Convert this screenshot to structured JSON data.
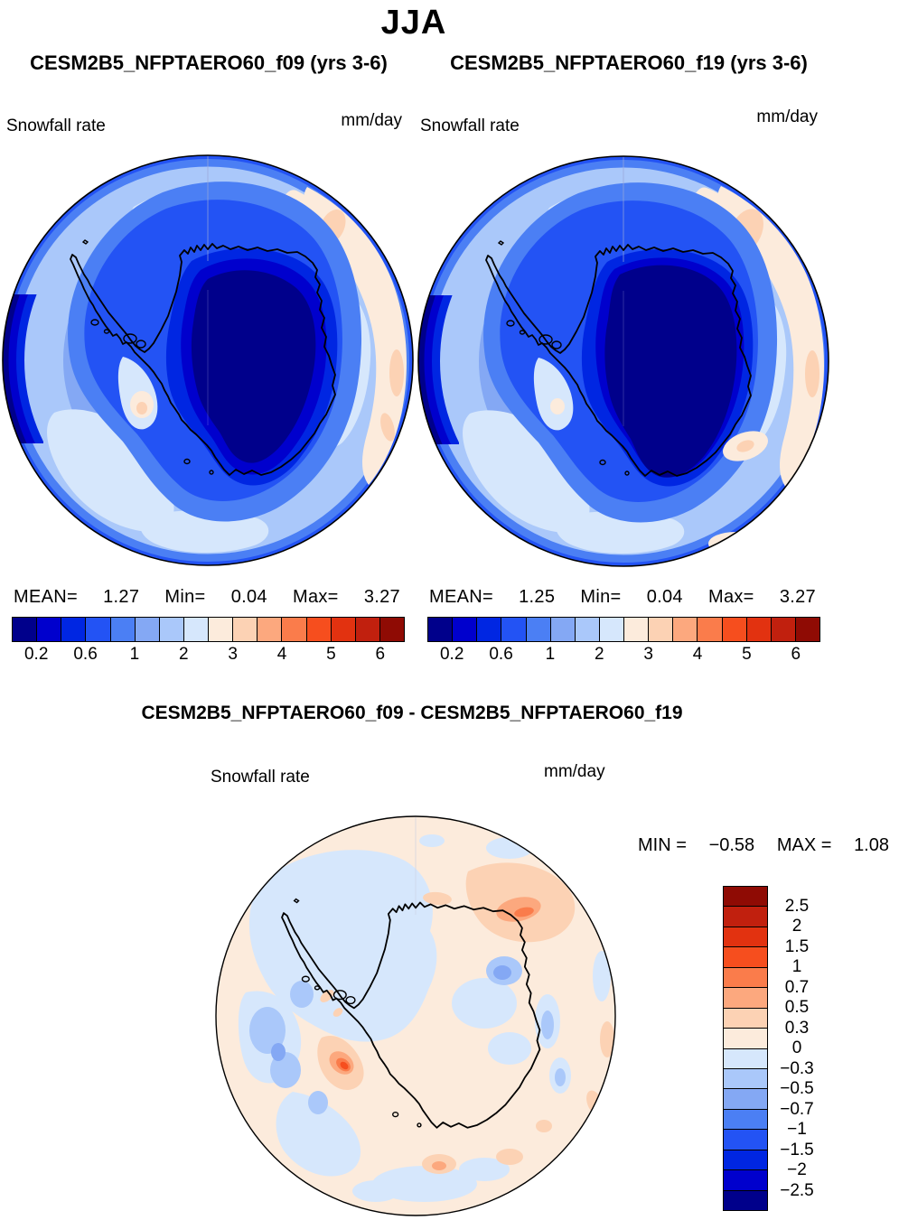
{
  "title": "JJA",
  "panels": [
    {
      "subtitle": "CESM2B5_NFPTAERO60_f09 (yrs 3-6)",
      "field": "Snowfall rate",
      "units": "mm/day",
      "stats": {
        "mean_label": "MEAN=",
        "mean": "1.27",
        "min_label": "Min=",
        "min": "0.04",
        "max_label": "Max=",
        "max": "3.27"
      }
    },
    {
      "subtitle": "CESM2B5_NFPTAERO60_f19 (yrs 3-6)",
      "field": "Snowfall rate",
      "units": "mm/day",
      "stats": {
        "mean_label": "MEAN=",
        "mean": "1.25",
        "min_label": "Min=",
        "min": "0.04",
        "max_label": "Max=",
        "max": "3.27"
      }
    }
  ],
  "colorbar": {
    "colors": [
      "#00008B",
      "#0000CD",
      "#0026E2",
      "#2353F4",
      "#4B7FF4",
      "#84A8F4",
      "#AAC8FA",
      "#D6E7FC",
      "#FCEBDC",
      "#FCD2B4",
      "#FCA87E",
      "#FA7C4B",
      "#F64E1E",
      "#E23210",
      "#C1200E",
      "#8F0B04"
    ],
    "tick_labels": [
      "0.2",
      "0.6",
      "1",
      "2",
      "3",
      "4",
      "5",
      "6"
    ],
    "tick_positions": [
      1,
      3,
      5,
      7,
      9,
      11,
      13,
      15
    ]
  },
  "diff": {
    "title": "CESM2B5_NFPTAERO60_f09 - CESM2B5_NFPTAERO60_f19",
    "field": "Snowfall rate",
    "units": "mm/day",
    "min_label": "MIN =",
    "min": "−0.58",
    "max_label": "MAX =",
    "max": "1.08",
    "colorbar": {
      "colors": [
        "#8F0B04",
        "#C1200E",
        "#E23210",
        "#F64E1E",
        "#FA7C4B",
        "#FCA87E",
        "#FCD2B4",
        "#FCEBDC",
        "#D6E7FC",
        "#AAC8FA",
        "#84A8F4",
        "#4B7FF4",
        "#2353F4",
        "#0026E2",
        "#0000CD",
        "#00008B"
      ],
      "tick_labels": [
        "2.5",
        "2",
        "1.5",
        "1",
        "0.7",
        "0.5",
        "0.3",
        "0",
        "−0.3",
        "−0.5",
        "−0.7",
        "−1",
        "−1.5",
        "−2",
        "−2.5"
      ]
    }
  },
  "chart_data": {
    "type": "heatmap",
    "title": "JJA",
    "variable": "Snowfall rate",
    "units": "mm/day",
    "projection": "south polar stereographic, Antarctica",
    "panels": [
      {
        "name": "CESM2B5_NFPTAERO60_f09 (yrs 3-6)",
        "mean": 1.27,
        "min": 0.04,
        "max": 3.27
      },
      {
        "name": "CESM2B5_NFPTAERO60_f19 (yrs 3-6)",
        "mean": 1.25,
        "min": 0.04,
        "max": 3.27
      }
    ],
    "contour_levels": [
      0.2,
      0.4,
      0.6,
      0.8,
      1,
      1.5,
      2,
      2.5,
      3,
      3.5,
      4,
      4.5,
      5,
      5.5,
      6
    ],
    "difference_panel": {
      "name": "CESM2B5_NFPTAERO60_f09 - CESM2B5_NFPTAERO60_f19",
      "min": -0.58,
      "max": 1.08,
      "contour_levels": [
        -2.5,
        -2,
        -1.5,
        -1,
        -0.7,
        -0.5,
        -0.3,
        0,
        0.3,
        0.5,
        0.7,
        1,
        1.5,
        2,
        2.5
      ]
    },
    "legend_position": "horizontal colorbars below top panels; vertical colorbar right of difference panel"
  }
}
